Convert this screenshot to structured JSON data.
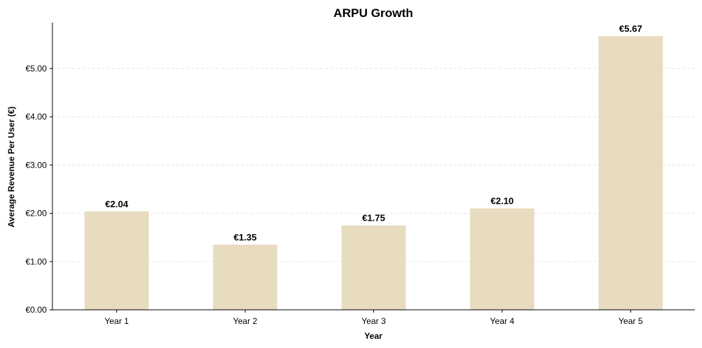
{
  "chart_data": {
    "type": "bar",
    "title": "ARPU Growth",
    "xlabel": "Year",
    "ylabel": "Average Revenue Per User (€)",
    "categories": [
      "Year 1",
      "Year 2",
      "Year 3",
      "Year 4",
      "Year 5"
    ],
    "values": [
      2.04,
      1.35,
      1.75,
      2.1,
      5.67
    ],
    "value_labels": [
      "€2.04",
      "€1.35",
      "€1.75",
      "€2.10",
      "€5.67"
    ],
    "ylim": [
      0,
      5.95
    ],
    "yticks": [
      0,
      1,
      2,
      3,
      4,
      5
    ],
    "ytick_labels": [
      "€0.00",
      "€1.00",
      "€2.00",
      "€3.00",
      "€4.00",
      "€5.00"
    ],
    "grid": "y-dashed",
    "legend": "none",
    "colors": {
      "bar": "#e8dcc0",
      "grid": "#dddddd",
      "axis": "#000000"
    }
  }
}
